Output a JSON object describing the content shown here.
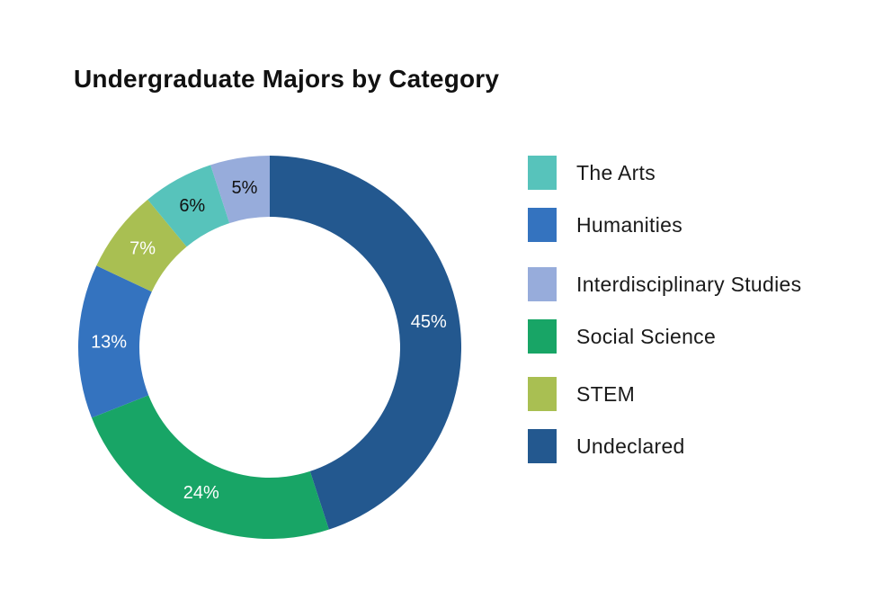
{
  "chart_data": {
    "type": "pie",
    "title": "Undergraduate Majors by Category",
    "categories": [
      "Undeclared",
      "Social Science",
      "Humanities",
      "STEM",
      "The Arts",
      "Interdisciplinary Studies"
    ],
    "values": [
      45,
      24,
      13,
      7,
      6,
      5
    ],
    "value_labels": [
      "45%",
      "24%",
      "13%",
      "7%",
      "6%",
      "5%"
    ],
    "colors": [
      "#23588f",
      "#18a566",
      "#3473bf",
      "#a9bf52",
      "#57c3bb",
      "#97acdb"
    ],
    "label_colors": [
      "#ffffff",
      "#ffffff",
      "#ffffff",
      "#ffffff",
      "#111111",
      "#111111"
    ],
    "donut": true,
    "legend_position": "right",
    "legend": [
      {
        "label": "The Arts",
        "color": "#57c3bb"
      },
      {
        "label": "Humanities",
        "color": "#3473bf"
      },
      {
        "label": "Interdisciplinary Studies",
        "color": "#97acdb"
      },
      {
        "label": "Social Science",
        "color": "#18a566"
      },
      {
        "label": "STEM",
        "color": "#a9bf52"
      },
      {
        "label": "Undeclared",
        "color": "#23588f"
      }
    ]
  }
}
